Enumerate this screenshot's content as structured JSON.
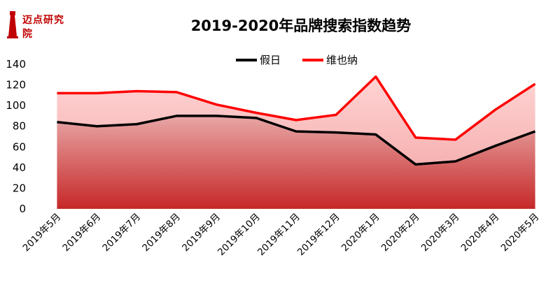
{
  "brand": {
    "name": "迈点研究院"
  },
  "chart_data": {
    "type": "area",
    "title": "2019-2020年品牌搜索指数趋势",
    "categories": [
      "2019年5月",
      "2019年6月",
      "2019年7月",
      "2019年8月",
      "2019年9月",
      "2019年10月",
      "2019年11月",
      "2019年12月",
      "2020年1月",
      "2020年2月",
      "2020年3月",
      "2020年4月",
      "2020年5月"
    ],
    "series": [
      {
        "name": "假日",
        "color": "#000000",
        "values": [
          84,
          80,
          82,
          90,
          90,
          88,
          75,
          74,
          72,
          43,
          46,
          61,
          75
        ]
      },
      {
        "name": "维也纳",
        "color": "#ff0000",
        "values": [
          112,
          112,
          114,
          113,
          101,
          93,
          86,
          91,
          128,
          69,
          67,
          96,
          121
        ]
      }
    ],
    "ylim": [
      0,
      140
    ],
    "yticks": [
      0,
      20,
      40,
      60,
      80,
      100,
      120,
      140
    ],
    "grid": false,
    "legend_position": "top-center"
  }
}
